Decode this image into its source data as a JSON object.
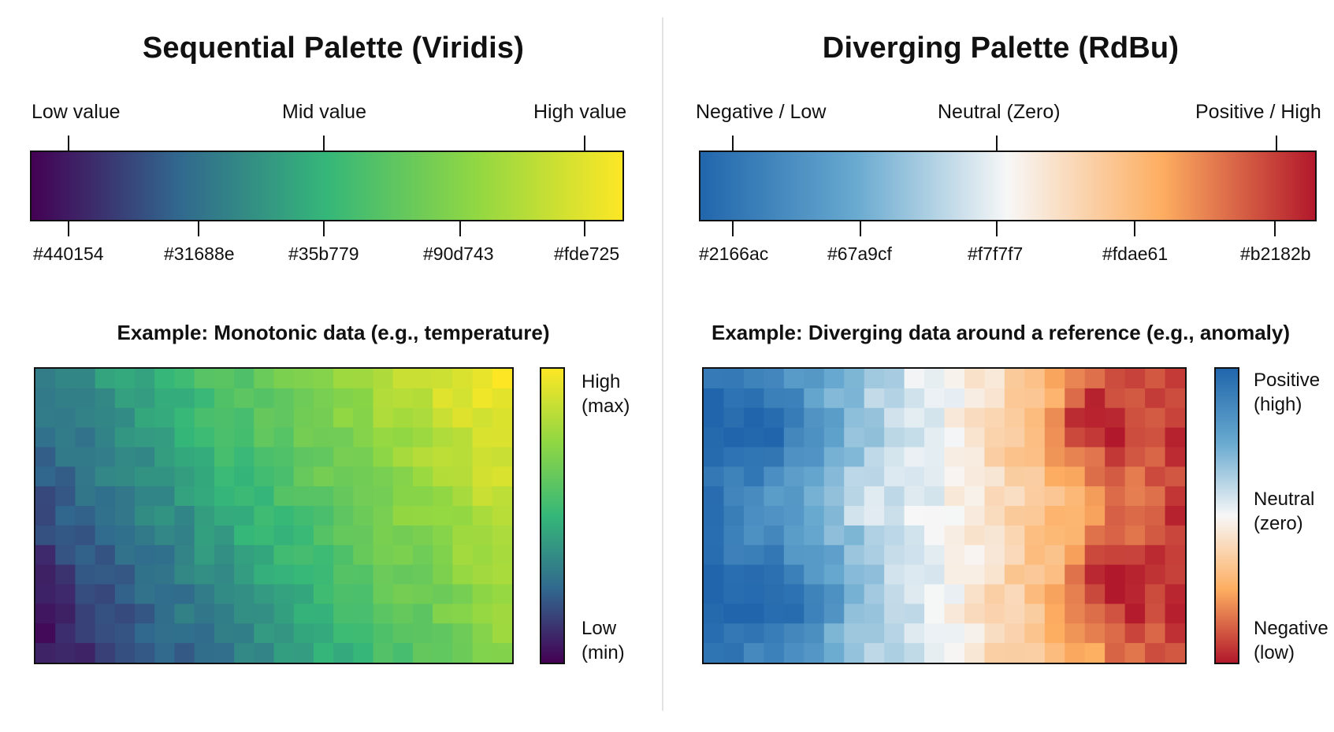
{
  "chart_data": [
    {
      "type": "heatmap",
      "title": "Sequential Palette (Viridis)",
      "palette_name": "Viridis",
      "ramp_labels": [
        "Low value",
        "Mid value",
        "High value"
      ],
      "palette_stops": [
        "#440154",
        "#31688e",
        "#35b779",
        "#90d743",
        "#fde725"
      ],
      "example_title": "Example: Monotonic data (e.g., temperature)",
      "colorbar": {
        "top_label": "High\n(max)",
        "bottom_label": "Low\n(min)"
      },
      "pattern": "value increases smoothly from bottom-left (low) to top-right (high)",
      "grid": {
        "cols": 24,
        "rows": 15
      }
    },
    {
      "type": "heatmap",
      "title": "Diverging Palette (RdBu)",
      "palette_name": "RdBu",
      "ramp_labels": [
        "Negative / Low",
        "Neutral (Zero)",
        "Positive / High"
      ],
      "palette_stops": [
        "#2166ac",
        "#67a9cf",
        "#f7f7f7",
        "#fdae61",
        "#b2182b"
      ],
      "example_title": "Example: Diverging data around a reference (e.g., anomaly)",
      "colorbar": {
        "top_label": "Positive\n(high)",
        "middle_label": "Neutral\n(zero)",
        "bottom_label": "Negative\n(low)"
      },
      "pattern": "blue (negative) clusters on the left, near-white neutral band in the middle, red (positive) clusters on the right",
      "grid": {
        "cols": 24,
        "rows": 15
      }
    }
  ]
}
